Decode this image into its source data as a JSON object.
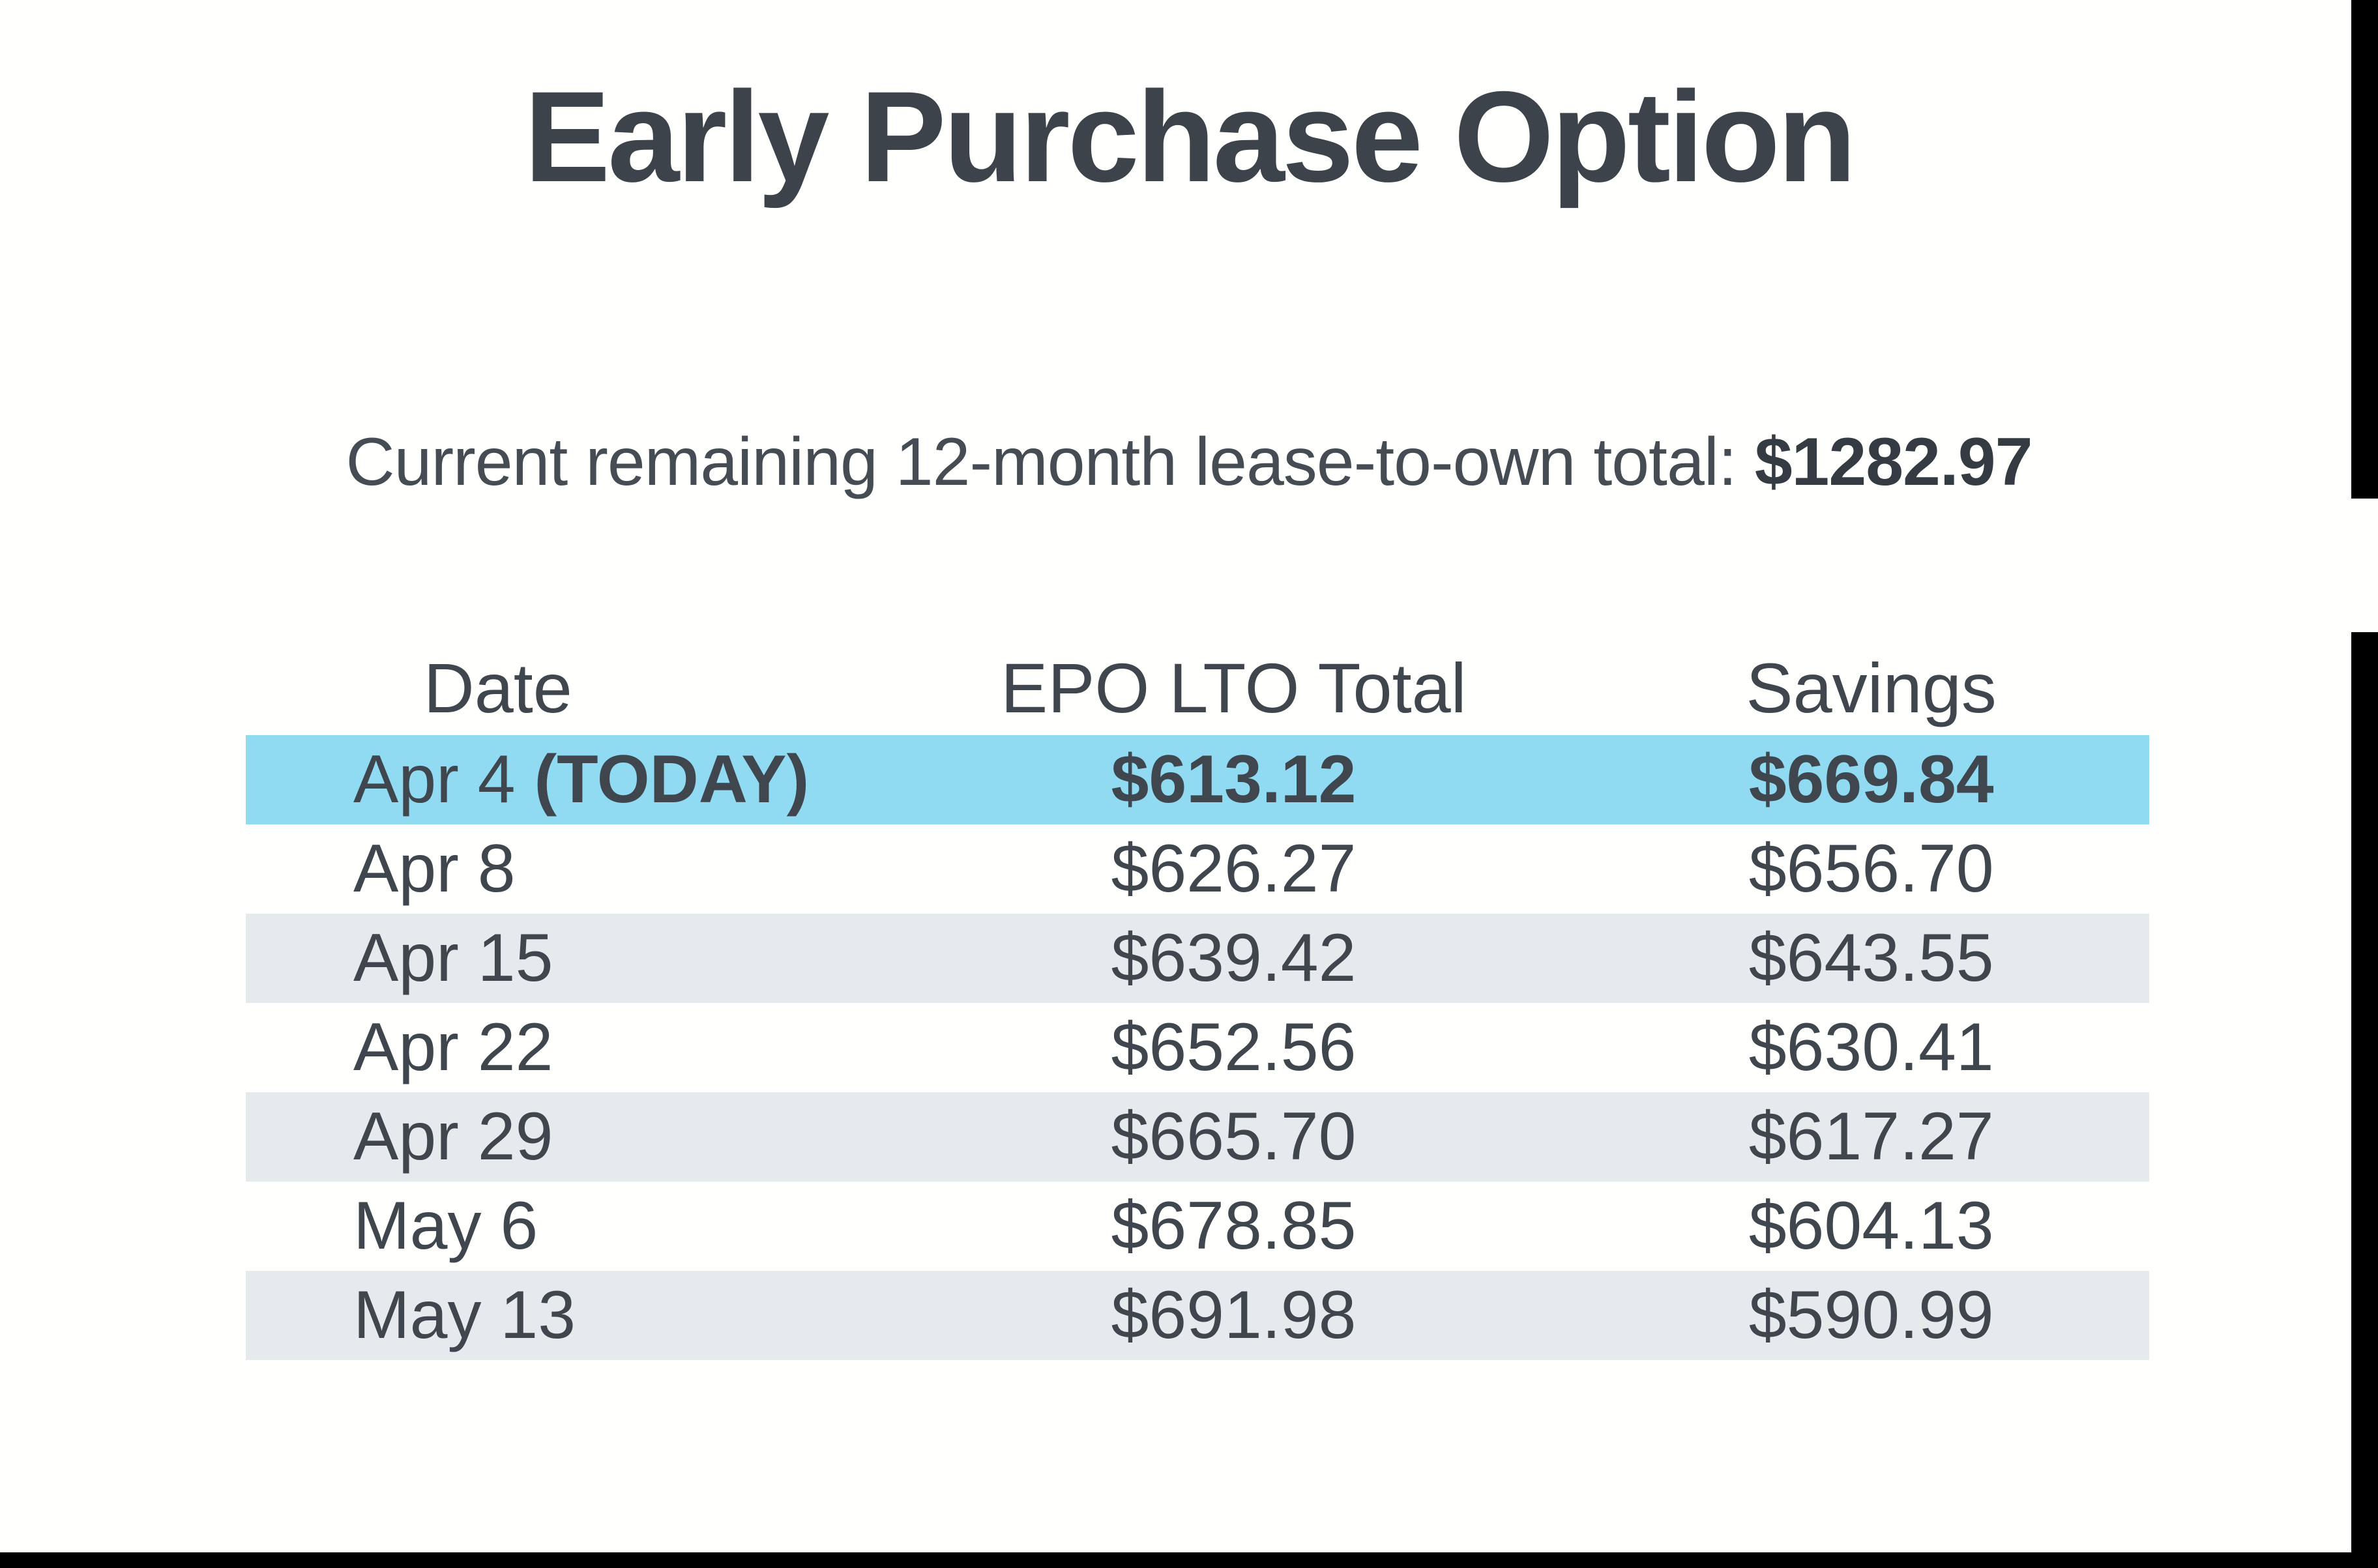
{
  "page": {
    "title": "Early Purchase Option",
    "subtitle_prefix": "Current remaining 12-month lease-to-own total: ",
    "subtitle_amount": "$1282.97"
  },
  "table": {
    "columns": [
      "Date",
      "EPO LTO Total",
      "Savings"
    ],
    "rows": [
      {
        "date": "Apr 4 ",
        "date_today_suffix": "(TODAY)",
        "epo": "$613.12",
        "savings": "$669.84",
        "highlight": true,
        "emphasis": true
      },
      {
        "date": "Apr 8",
        "epo": "$626.27",
        "savings": "$656.70",
        "shaded": false
      },
      {
        "date": "Apr 15",
        "epo": "$639.42",
        "savings": "$643.55",
        "shaded": true
      },
      {
        "date": "Apr 22",
        "epo": "$652.56",
        "savings": "$630.41",
        "shaded": false
      },
      {
        "date": "Apr 29",
        "epo": "$665.70",
        "savings": "$617.27",
        "shaded": true
      },
      {
        "date": "May 6",
        "epo": "$678.85",
        "savings": "$604.13",
        "shaded": false
      },
      {
        "date": "May 13",
        "epo": "$691.98",
        "savings": "$590.99",
        "shaded": true
      }
    ]
  },
  "colors": {
    "highlight_row": "#90daf2",
    "shaded_row": "#e7eaed",
    "text": "#3f464d",
    "title_text": "#3c434a",
    "right_bar": "#000000",
    "bottom_bar": "#000000",
    "background": "#fffffe"
  }
}
